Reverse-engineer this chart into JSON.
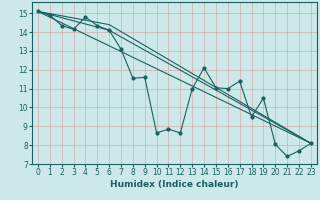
{
  "xlabel": "Humidex (Indice chaleur)",
  "bg_color": "#cce8e8",
  "grid_color": "#b0c8c8",
  "line_color": "#1a6060",
  "xlim": [
    -0.5,
    23.5
  ],
  "ylim": [
    7,
    15.6
  ],
  "yticks": [
    7,
    8,
    9,
    10,
    11,
    12,
    13,
    14,
    15
  ],
  "xticks": [
    0,
    1,
    2,
    3,
    4,
    5,
    6,
    7,
    8,
    9,
    10,
    11,
    12,
    13,
    14,
    15,
    16,
    17,
    18,
    19,
    20,
    21,
    22,
    23
  ],
  "series1_x": [
    0,
    1,
    2,
    3,
    4,
    5,
    6,
    7,
    8,
    9,
    10,
    11,
    12,
    13,
    14,
    15,
    16,
    17,
    18,
    19,
    20,
    21,
    22,
    23
  ],
  "series1_y": [
    15.1,
    14.9,
    14.35,
    14.15,
    14.8,
    14.35,
    14.1,
    13.1,
    11.55,
    11.6,
    8.65,
    8.85,
    8.65,
    11.0,
    12.1,
    11.05,
    11.0,
    11.4,
    9.5,
    10.5,
    8.05,
    7.4,
    7.7,
    8.1
  ],
  "series2_x": [
    0,
    23
  ],
  "series2_y": [
    15.1,
    8.1
  ],
  "series3_x": [
    0,
    6,
    23
  ],
  "series3_y": [
    15.1,
    14.1,
    8.1
  ],
  "series4_x": [
    0,
    6,
    23
  ],
  "series4_y": [
    15.1,
    14.4,
    8.1
  ],
  "font_size": 5.5,
  "xlabel_fontsize": 6.5
}
